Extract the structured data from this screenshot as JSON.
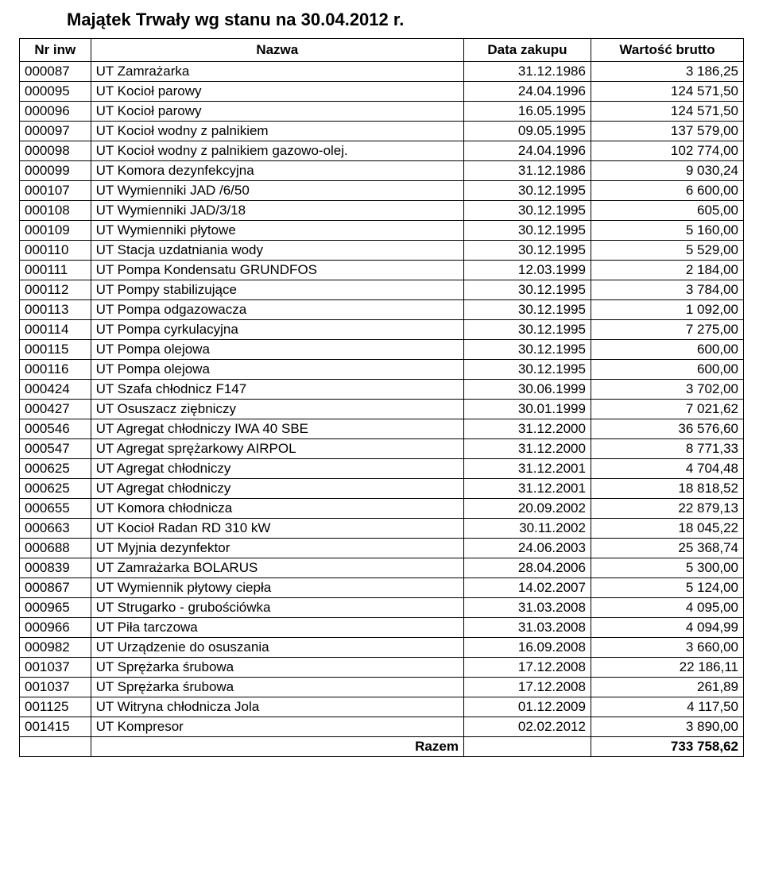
{
  "title": "Majątek Trwały wg stanu na 30.04.2012 r.",
  "table": {
    "headers": {
      "inv": "Nr inw",
      "name": "Nazwa",
      "date": "Data zakupu",
      "value": "Wartość brutto"
    },
    "rows": [
      {
        "inv": "000087",
        "name": "UT Zamrażarka",
        "date": "31.12.1986",
        "value": "3 186,25"
      },
      {
        "inv": "000095",
        "name": "UT Kocioł parowy",
        "date": "24.04.1996",
        "value": "124 571,50"
      },
      {
        "inv": "000096",
        "name": "UT Kocioł parowy",
        "date": "16.05.1995",
        "value": "124 571,50"
      },
      {
        "inv": "000097",
        "name": "UT Kocioł wodny z palnikiem",
        "date": "09.05.1995",
        "value": "137 579,00"
      },
      {
        "inv": "000098",
        "name": "UT Kocioł wodny z palnikiem gazowo-olej.",
        "date": "24.04.1996",
        "value": "102 774,00"
      },
      {
        "inv": "000099",
        "name": "UT Komora dezynfekcyjna",
        "date": "31.12.1986",
        "value": "9 030,24"
      },
      {
        "inv": "000107",
        "name": "UT Wymienniki JAD /6/50",
        "date": "30.12.1995",
        "value": "6 600,00"
      },
      {
        "inv": "000108",
        "name": "UT Wymienniki JAD/3/18",
        "date": "30.12.1995",
        "value": "605,00"
      },
      {
        "inv": "000109",
        "name": "UT Wymienniki płytowe",
        "date": "30.12.1995",
        "value": "5 160,00"
      },
      {
        "inv": "000110",
        "name": "UT Stacja uzdatniania wody",
        "date": "30.12.1995",
        "value": "5 529,00"
      },
      {
        "inv": "000111",
        "name": "UT Pompa Kondensatu GRUNDFOS",
        "date": "12.03.1999",
        "value": "2 184,00"
      },
      {
        "inv": "000112",
        "name": "UT Pompy stabilizujące",
        "date": "30.12.1995",
        "value": "3 784,00"
      },
      {
        "inv": "000113",
        "name": "UT Pompa odgazowacza",
        "date": "30.12.1995",
        "value": "1 092,00"
      },
      {
        "inv": "000114",
        "name": "UT Pompa cyrkulacyjna",
        "date": "30.12.1995",
        "value": "7 275,00"
      },
      {
        "inv": "000115",
        "name": "UT Pompa olejowa",
        "date": "30.12.1995",
        "value": "600,00"
      },
      {
        "inv": "000116",
        "name": "UT Pompa olejowa",
        "date": "30.12.1995",
        "value": "600,00"
      },
      {
        "inv": "000424",
        "name": "UT Szafa chłodnicz F147",
        "date": "30.06.1999",
        "value": "3 702,00"
      },
      {
        "inv": "000427",
        "name": "UT Osuszacz ziębniczy",
        "date": "30.01.1999",
        "value": "7 021,62"
      },
      {
        "inv": "000546",
        "name": "UT Agregat chłodniczy IWA 40 SBE",
        "date": "31.12.2000",
        "value": "36 576,60"
      },
      {
        "inv": "000547",
        "name": "UT Agregat sprężarkowy AIRPOL",
        "date": "31.12.2000",
        "value": "8 771,33"
      },
      {
        "inv": "000625",
        "name": "UT Agregat chłodniczy",
        "date": "31.12.2001",
        "value": "4 704,48"
      },
      {
        "inv": "000625",
        "name": "UT Agregat chłodniczy",
        "date": "31.12.2001",
        "value": "18 818,52"
      },
      {
        "inv": "000655",
        "name": "UT Komora chłodnicza",
        "date": "20.09.2002",
        "value": "22 879,13"
      },
      {
        "inv": "000663",
        "name": "UT Kocioł Radan RD 310 kW",
        "date": "30.11.2002",
        "value": "18 045,22"
      },
      {
        "inv": "000688",
        "name": "UT Myjnia dezynfektor",
        "date": "24.06.2003",
        "value": "25 368,74"
      },
      {
        "inv": "000839",
        "name": "UT Zamrażarka BOLARUS",
        "date": "28.04.2006",
        "value": "5 300,00"
      },
      {
        "inv": "000867",
        "name": "UT Wymiennik płytowy ciepła",
        "date": "14.02.2007",
        "value": "5 124,00"
      },
      {
        "inv": "000965",
        "name": "UT Strugarko - grubościówka",
        "date": "31.03.2008",
        "value": "4 095,00"
      },
      {
        "inv": "000966",
        "name": "UT Piła tarczowa",
        "date": "31.03.2008",
        "value": "4 094,99"
      },
      {
        "inv": "000982",
        "name": "UT Urządzenie do osuszania",
        "date": "16.09.2008",
        "value": "3 660,00"
      },
      {
        "inv": "001037",
        "name": "UT Sprężarka śrubowa",
        "date": "17.12.2008",
        "value": "22 186,11"
      },
      {
        "inv": "001037",
        "name": "UT Sprężarka śrubowa",
        "date": "17.12.2008",
        "value": "261,89"
      },
      {
        "inv": "001125",
        "name": "UT Witryna chłodnicza Jola",
        "date": "01.12.2009",
        "value": "4 117,50"
      },
      {
        "inv": "001415",
        "name": "UT Kompresor",
        "date": "02.02.2012",
        "value": "3 890,00"
      }
    ],
    "total": {
      "label": "Razem",
      "value": "733 758,62"
    }
  }
}
